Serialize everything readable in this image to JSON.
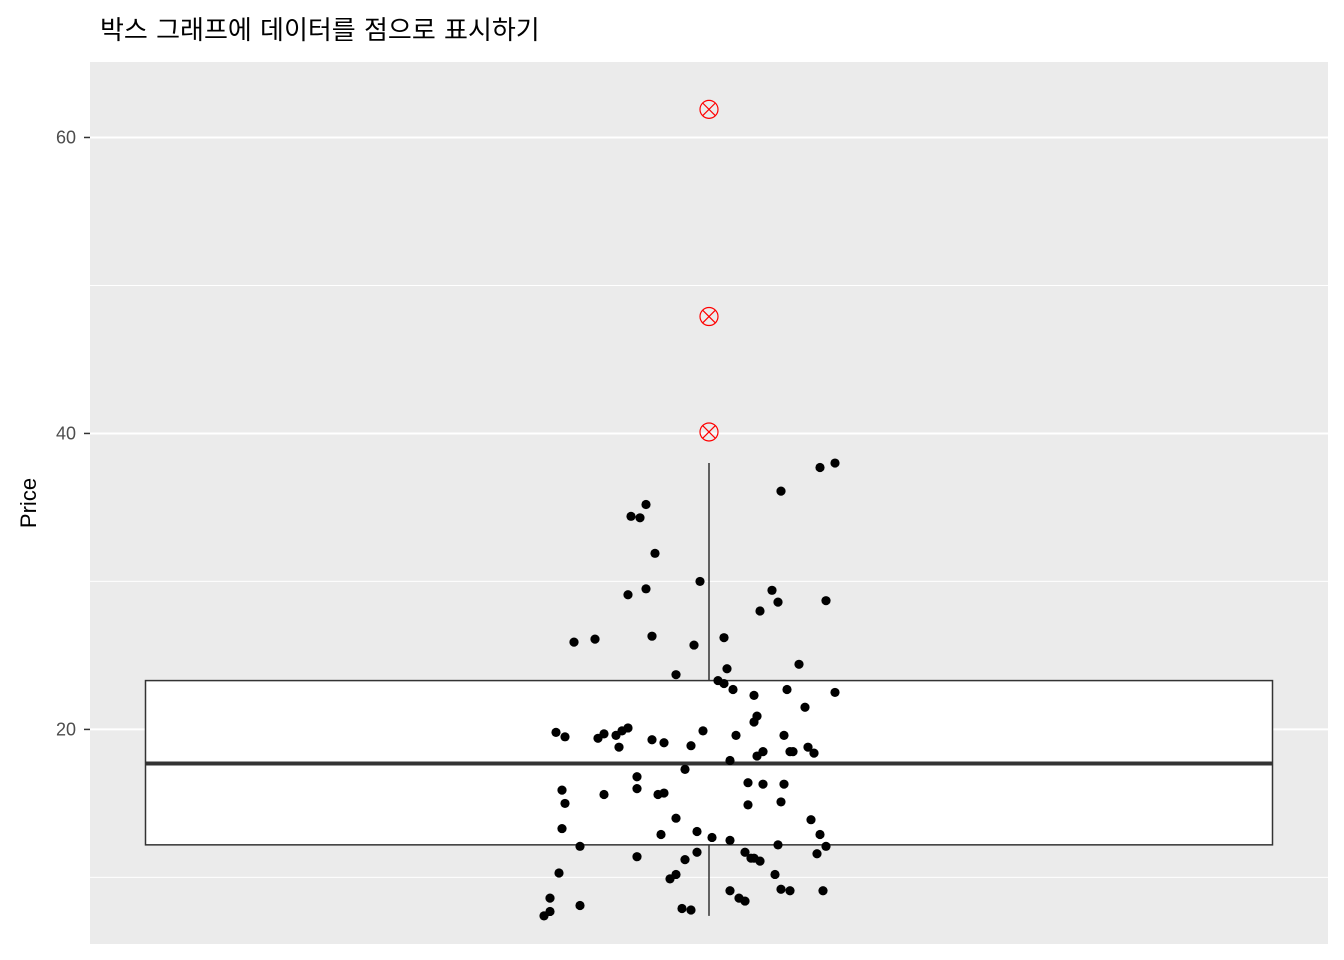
{
  "chart_data": {
    "type": "box",
    "title": "박스 그래프에 데이터를 점으로 표시하기",
    "xlabel": "",
    "ylabel": "Price",
    "ylim": [
      5.5,
      65.1
    ],
    "y_ticks": [
      20,
      40,
      60
    ],
    "y_tick_labels": [
      "20",
      "40",
      "60"
    ],
    "y_minor_ticks": [
      10,
      30,
      50
    ],
    "grid": true,
    "panel_background": "#ebebeb",
    "grid_color": "#ffffff",
    "box": {
      "lower_whisker": 7.4,
      "q1": 12.2,
      "median": 17.7,
      "q3": 23.3,
      "upper_whisker": 38.0,
      "fill": "#ffffff",
      "stroke": "#333333"
    },
    "outliers": {
      "values": [
        40.1,
        47.9,
        61.9
      ],
      "color": "#ff0000",
      "shape": "circled-x"
    },
    "points": {
      "color": "#000000",
      "jitter_x": [
        -0.55,
        -0.53,
        -0.5,
        -0.49,
        -0.45,
        -0.43,
        -0.38,
        -0.35,
        -0.35,
        -0.29,
        -0.48,
        -0.49,
        -0.48,
        -0.51,
        -0.37,
        -0.24,
        -0.27,
        -0.17,
        -0.02,
        -0.11,
        0.01,
        -0.08,
        -0.11,
        -0.23,
        -0.21,
        -0.26,
        -0.18,
        -0.21,
        -0.3,
        -0.15,
        -0.06,
        -0.04,
        0.07,
        0.23,
        -0.19,
        -0.11,
        0.09,
        0.16,
        0.28,
        0.25,
        0.24,
        0.34,
        0.36,
        0.37,
        0.39,
        0.15,
        0.16,
        0.18,
        0.32,
        0.3,
        0.26,
        0.39,
        0.42,
        0.35,
        0.13,
        0.15,
        0.23,
        0.17,
        0.12,
        0.1,
        0.27,
        0.24,
        -0.15,
        -0.24,
        -0.31,
        -0.19,
        0.15,
        -0.24,
        -0.08,
        0.24,
        0.37,
        0.42,
        0.22,
        0.14,
        -0.13,
        0.12,
        0.07,
        0.03,
        0.08,
        0.05,
        0.06,
        0.05,
        0.17,
        0.21,
        -0.03,
        -0.05,
        -0.27,
        -0.16,
        -0.53,
        0.38,
        -0.43,
        -0.09,
        -0.06,
        0.27,
        0.33,
        -0.04,
        0.13,
        0.25,
        0.18,
        0.07
      ],
      "values": [
        7.4,
        8.6,
        10.3,
        13.3,
        25.9,
        12.1,
        26.1,
        19.7,
        15.6,
        19.9,
        19.5,
        15.9,
        15,
        19.8,
        19.4,
        16,
        20.1,
        15.6,
        19.9,
        14,
        12.7,
        11.2,
        10.2,
        34.3,
        35.2,
        34.4,
        31.9,
        29.5,
        18.8,
        19.1,
        18.9,
        13.1,
        12.5,
        28.6,
        26.3,
        23.7,
        19.6,
        18.2,
        18.5,
        16.3,
        15.1,
        13.9,
        11.6,
        12.9,
        12.1,
        20.5,
        20.9,
        18.5,
        21.5,
        24.4,
        22.7,
        28.7,
        22.5,
        18.4,
        14.9,
        11.3,
        12.2,
        11.1,
        8.4,
        8.6,
        9.1,
        9.2,
        15.7,
        11.4,
        19.6,
        19.3,
        22.3,
        16.8,
        17.3,
        36.1,
        37.7,
        38,
        10.2,
        11.3,
        9.9,
        11.7,
        9.1,
        23.3,
        22.7,
        23.1,
        24.1,
        26.2,
        28.0,
        29.4,
        30.0,
        25.7,
        29.1,
        12.9,
        7.7,
        9.1,
        8.1,
        7.9,
        7.8,
        18.5,
        18.8,
        11.7,
        16.4,
        19.6,
        16.3,
        17.9
      ]
    },
    "box_x_range": [
      -1.0,
      1.0
    ]
  }
}
